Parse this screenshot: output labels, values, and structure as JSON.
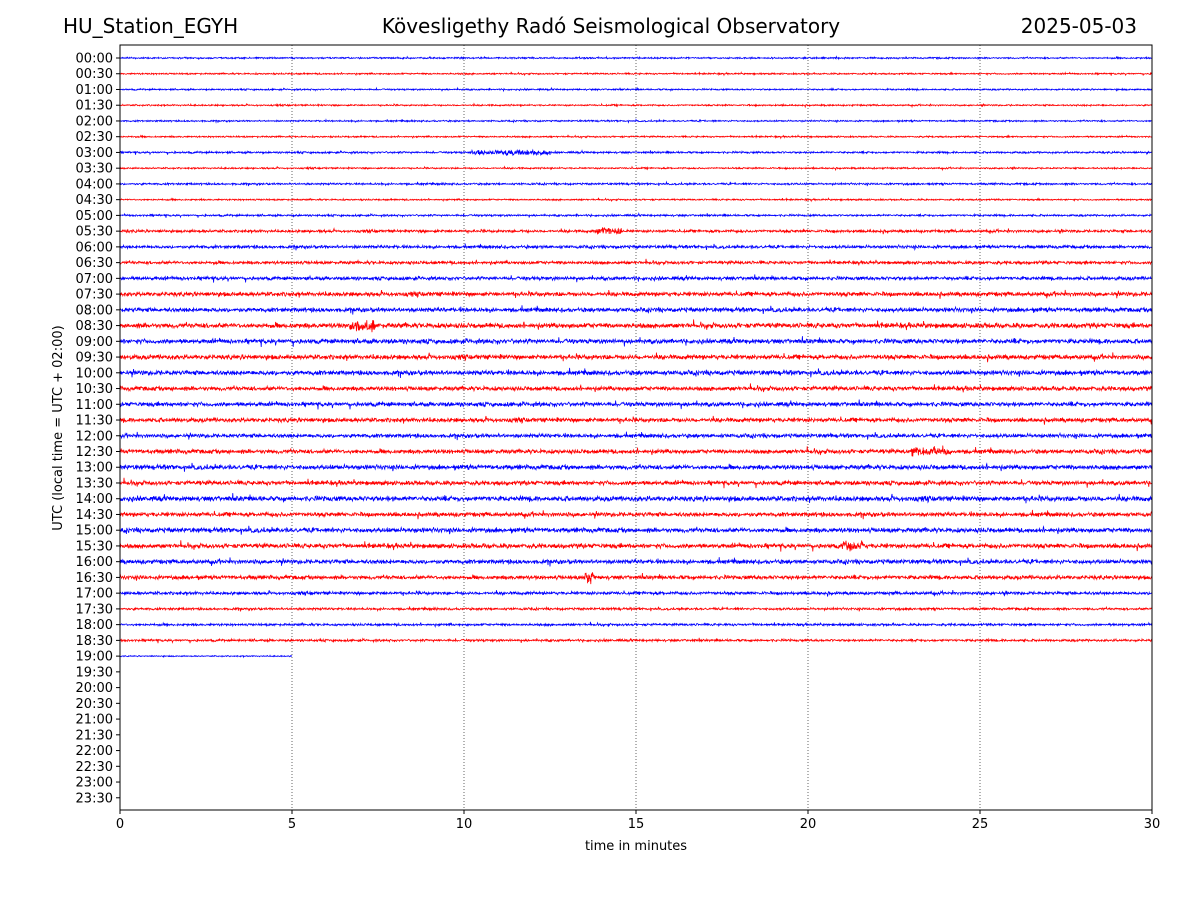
{
  "header": {
    "station": "HU_Station_EGYH",
    "title": "Kövesligethy Radó Seismological Observatory",
    "date": "2025-05-03"
  },
  "chart_data": {
    "type": "line",
    "title": "Kövesligethy Radó Seismological Observatory",
    "xlabel": "time in minutes",
    "ylabel": "UTC (local time = UTC + 02:00)",
    "xlim": [
      0,
      30
    ],
    "xticks": [
      0,
      5,
      10,
      15,
      20,
      25,
      30
    ],
    "grid_x": true,
    "colors": {
      "even_rows": "#0000ff",
      "odd_rows": "#ff0000"
    },
    "rows": [
      "00:00",
      "00:30",
      "01:00",
      "01:30",
      "02:00",
      "02:30",
      "03:00",
      "03:30",
      "04:00",
      "04:30",
      "05:00",
      "05:30",
      "06:00",
      "06:30",
      "07:00",
      "07:30",
      "08:00",
      "08:30",
      "09:00",
      "09:30",
      "10:00",
      "10:30",
      "11:00",
      "11:30",
      "12:00",
      "12:30",
      "13:00",
      "13:30",
      "14:00",
      "14:30",
      "15:00",
      "15:30",
      "16:00",
      "16:30",
      "17:00",
      "17:30",
      "18:00",
      "18:30",
      "19:00",
      "19:30",
      "20:00",
      "20:30",
      "21:00",
      "21:30",
      "22:00",
      "22:30",
      "23:00",
      "23:30"
    ],
    "recorded_minutes": [
      30,
      30,
      30,
      30,
      30,
      30,
      30,
      30,
      30,
      30,
      30,
      30,
      30,
      30,
      30,
      30,
      30,
      30,
      30,
      30,
      30,
      30,
      30,
      30,
      30,
      30,
      30,
      30,
      30,
      30,
      30,
      30,
      30,
      30,
      30,
      30,
      30,
      30,
      5,
      0,
      0,
      0,
      0,
      0,
      0,
      0,
      0,
      0
    ],
    "relative_amplitude": [
      0.2,
      0.2,
      0.2,
      0.2,
      0.2,
      0.2,
      0.25,
      0.2,
      0.25,
      0.2,
      0.25,
      0.35,
      0.4,
      0.4,
      0.45,
      0.55,
      0.55,
      0.65,
      0.6,
      0.6,
      0.6,
      0.55,
      0.55,
      0.55,
      0.5,
      0.55,
      0.6,
      0.55,
      0.65,
      0.55,
      0.6,
      0.6,
      0.55,
      0.5,
      0.4,
      0.3,
      0.3,
      0.3,
      0.15,
      0,
      0,
      0,
      0,
      0,
      0,
      0,
      0,
      0
    ],
    "events": [
      {
        "row": "03:00",
        "start_min": 10.2,
        "end_min": 12.5,
        "amplitude": 0.5
      },
      {
        "row": "05:30",
        "start_min": 13.8,
        "end_min": 14.6,
        "amplitude": 0.6
      },
      {
        "row": "08:30",
        "start_min": 6.6,
        "end_min": 7.4,
        "amplitude": 0.9
      },
      {
        "row": "12:30",
        "start_min": 23.0,
        "end_min": 24.2,
        "amplitude": 0.8
      },
      {
        "row": "15:30",
        "start_min": 21.0,
        "end_min": 21.6,
        "amplitude": 0.8
      },
      {
        "row": "16:30",
        "start_min": 13.5,
        "end_min": 13.8,
        "amplitude": 1.4
      }
    ]
  }
}
